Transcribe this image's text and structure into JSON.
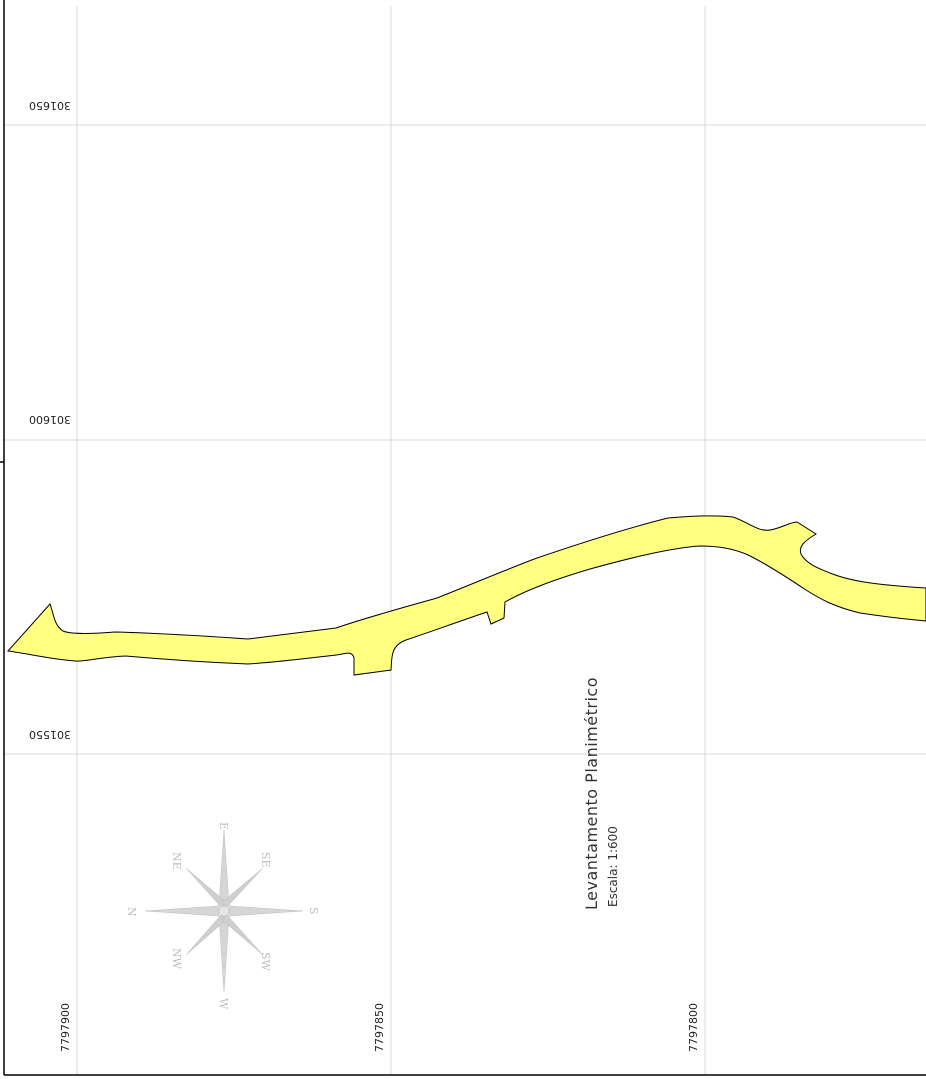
{
  "map": {
    "title": "Levantamento  Planimétrico",
    "scale_label": "Escala: 1:600",
    "parcel_fill": "#ffff80",
    "parcel_stroke": "#000000",
    "grid_color": "#d9d9d9",
    "compass_color": "#cccccc"
  },
  "grid": {
    "vertical_labels": [
      "7797900",
      "7797850",
      "7797800"
    ],
    "horizontal_labels": [
      "301650",
      "301600",
      "301550"
    ]
  },
  "compass": {
    "points": [
      "E",
      "SE",
      "S",
      "SW",
      "W",
      "NW",
      "N",
      "NE"
    ]
  }
}
